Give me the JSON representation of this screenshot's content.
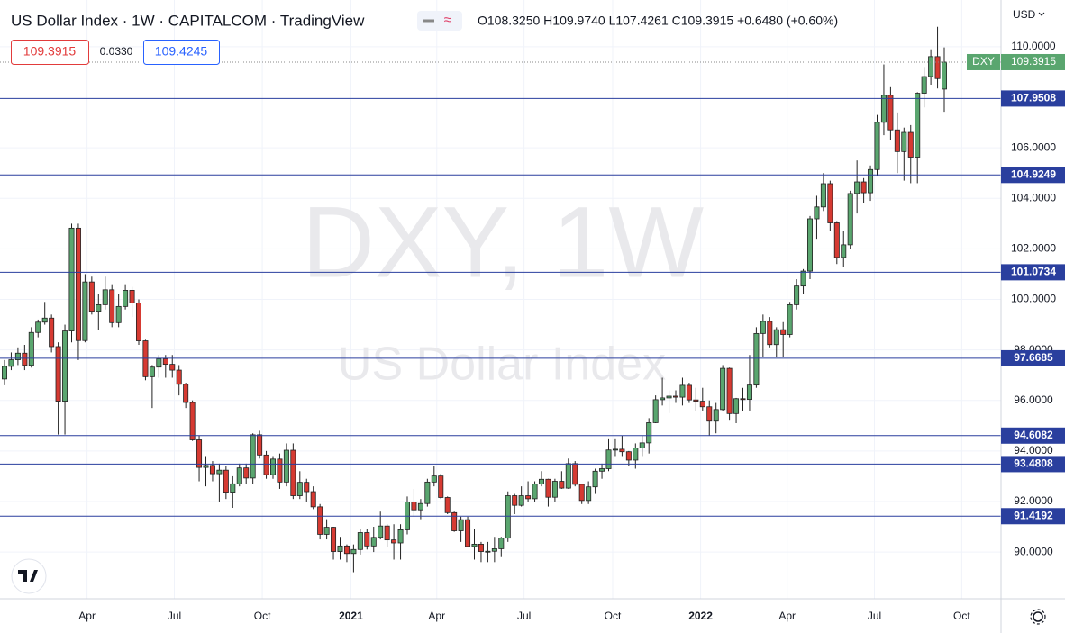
{
  "header": {
    "title": "US Dollar Index · 1W · CAPITALCOM · TradingView",
    "ohlc": "O108.3250 H109.9740 L107.4261 C109.3915 +0.6480 (+0.60%)",
    "bid": "109.3915",
    "spread": "0.0330",
    "ask": "109.4245",
    "currency": "USD"
  },
  "watermark": {
    "symbol": "DXY, 1W",
    "name": "US Dollar Index"
  },
  "chart_data": {
    "type": "candlestick",
    "up_color": "#5aa66f",
    "down_color": "#d63a32",
    "level_color": "#2a3f9e",
    "grid": true,
    "ylim": [
      88.15,
      111.85
    ],
    "yticks": [
      {
        "value": 90,
        "label": "90.0000"
      },
      {
        "value": 92,
        "label": "92.0000"
      },
      {
        "value": 94,
        "label": "94.0000"
      },
      {
        "value": 96,
        "label": "96.0000"
      },
      {
        "value": 98,
        "label": "98.0000"
      },
      {
        "value": 100,
        "label": "100.0000"
      },
      {
        "value": 102,
        "label": "102.0000"
      },
      {
        "value": 104,
        "label": "104.0000"
      },
      {
        "value": 106,
        "label": "106.0000"
      },
      {
        "value": 110,
        "label": "110.0000"
      }
    ],
    "xticks": [
      {
        "value": 12.3,
        "label": "Apr"
      },
      {
        "value": 25.3,
        "label": "Jul"
      },
      {
        "value": 38.4,
        "label": "Oct"
      },
      {
        "value": 51.6,
        "label": "2021"
      },
      {
        "value": 64.4,
        "label": "Apr"
      },
      {
        "value": 77.4,
        "label": "Jul"
      },
      {
        "value": 90.6,
        "label": "Oct"
      },
      {
        "value": 103.7,
        "label": "2022"
      },
      {
        "value": 116.6,
        "label": "Apr"
      },
      {
        "value": 129.6,
        "label": "Jul"
      },
      {
        "value": 142.6,
        "label": "Oct"
      }
    ],
    "levels": [
      107.9508,
      104.9249,
      101.0734,
      97.6685,
      94.6082,
      93.4808,
      91.4192
    ],
    "last_price": {
      "name": "DXY",
      "value": 109.3915
    },
    "candles": [
      [
        96.85,
        97.6,
        96.6,
        97.35
      ],
      [
        97.35,
        97.9,
        97.2,
        97.61
      ],
      [
        97.61,
        98.1,
        97.4,
        97.87
      ],
      [
        97.87,
        98.2,
        97.2,
        97.39
      ],
      [
        97.39,
        98.9,
        97.3,
        98.69
      ],
      [
        98.69,
        99.2,
        98.5,
        99.1
      ],
      [
        99.1,
        99.9,
        99.0,
        99.26
      ],
      [
        99.26,
        99.4,
        97.9,
        98.13
      ],
      [
        98.13,
        98.3,
        94.65,
        95.97
      ],
      [
        95.97,
        99.0,
        94.65,
        98.75
      ],
      [
        98.75,
        103.0,
        98.3,
        102.82
      ],
      [
        102.82,
        103.0,
        97.6,
        98.37
      ],
      [
        98.37,
        101.0,
        98.3,
        100.69
      ],
      [
        100.69,
        100.9,
        99.4,
        99.53
      ],
      [
        99.53,
        100.2,
        98.8,
        99.79
      ],
      [
        99.79,
        100.9,
        99.6,
        100.38
      ],
      [
        100.38,
        100.6,
        98.9,
        99.08
      ],
      [
        99.08,
        100.2,
        98.9,
        99.72
      ],
      [
        99.72,
        100.6,
        99.6,
        100.36
      ],
      [
        100.36,
        100.5,
        99.3,
        99.86
      ],
      [
        99.86,
        100.0,
        98.2,
        98.36
      ],
      [
        98.36,
        98.4,
        96.8,
        96.94
      ],
      [
        96.94,
        97.4,
        95.7,
        97.32
      ],
      [
        97.32,
        97.8,
        96.9,
        97.65
      ],
      [
        97.65,
        97.8,
        96.9,
        97.43
      ],
      [
        97.43,
        97.8,
        96.9,
        97.2
      ],
      [
        97.2,
        97.4,
        96.2,
        96.64
      ],
      [
        96.64,
        96.7,
        95.7,
        95.92
      ],
      [
        95.92,
        96.0,
        94.4,
        94.44
      ],
      [
        94.44,
        94.6,
        92.8,
        93.35
      ],
      [
        93.35,
        93.8,
        92.6,
        93.43
      ],
      [
        93.43,
        93.6,
        92.8,
        93.1
      ],
      [
        93.1,
        93.5,
        92.0,
        93.24
      ],
      [
        93.24,
        93.4,
        92.1,
        92.37
      ],
      [
        92.37,
        93.0,
        91.75,
        92.7
      ],
      [
        92.7,
        93.5,
        92.6,
        93.33
      ],
      [
        93.33,
        93.5,
        92.7,
        92.93
      ],
      [
        92.93,
        94.7,
        92.7,
        94.64
      ],
      [
        94.64,
        94.8,
        93.7,
        93.84
      ],
      [
        93.84,
        94.0,
        92.9,
        93.06
      ],
      [
        93.06,
        93.8,
        92.9,
        93.68
      ],
      [
        93.68,
        93.9,
        92.5,
        92.77
      ],
      [
        92.77,
        94.3,
        92.6,
        94.03
      ],
      [
        94.03,
        94.3,
        92.1,
        92.23
      ],
      [
        92.23,
        93.2,
        92.1,
        92.76
      ],
      [
        92.76,
        92.9,
        92.0,
        92.39
      ],
      [
        92.39,
        92.6,
        91.7,
        91.79
      ],
      [
        91.79,
        91.9,
        90.5,
        90.7
      ],
      [
        90.7,
        91.3,
        90.5,
        90.98
      ],
      [
        90.98,
        91.0,
        89.7,
        90.02
      ],
      [
        90.02,
        90.6,
        89.7,
        90.24
      ],
      [
        90.24,
        90.3,
        89.6,
        89.94
      ],
      [
        89.94,
        90.3,
        89.2,
        90.1
      ],
      [
        90.1,
        90.9,
        89.9,
        90.77
      ],
      [
        90.77,
        90.9,
        90.1,
        90.24
      ],
      [
        90.24,
        91.0,
        90.0,
        90.58
      ],
      [
        90.58,
        91.6,
        90.5,
        91.03
      ],
      [
        91.03,
        91.1,
        90.2,
        90.48
      ],
      [
        90.48,
        91.1,
        89.7,
        90.36
      ],
      [
        90.36,
        91.1,
        89.7,
        90.88
      ],
      [
        90.88,
        92.2,
        90.7,
        91.98
      ],
      [
        91.98,
        92.5,
        91.4,
        91.67
      ],
      [
        91.67,
        92.1,
        91.3,
        91.92
      ],
      [
        91.92,
        92.9,
        91.8,
        92.77
      ],
      [
        92.77,
        93.4,
        92.6,
        93.01
      ],
      [
        93.01,
        93.1,
        92.1,
        92.16
      ],
      [
        92.16,
        92.2,
        91.5,
        91.56
      ],
      [
        91.56,
        91.6,
        90.8,
        90.84
      ],
      [
        90.84,
        91.4,
        90.4,
        91.28
      ],
      [
        91.28,
        91.4,
        90.2,
        90.22
      ],
      [
        90.22,
        90.9,
        89.7,
        90.31
      ],
      [
        90.31,
        90.4,
        89.6,
        90.02
      ],
      [
        90.02,
        90.4,
        89.6,
        90.03
      ],
      [
        90.03,
        90.6,
        89.6,
        90.13
      ],
      [
        90.13,
        90.6,
        89.8,
        90.55
      ],
      [
        90.55,
        92.4,
        90.4,
        92.23
      ],
      [
        92.23,
        92.3,
        91.5,
        91.85
      ],
      [
        91.85,
        92.6,
        91.8,
        92.23
      ],
      [
        92.23,
        92.8,
        92.0,
        92.11
      ],
      [
        92.11,
        92.8,
        92.0,
        92.69
      ],
      [
        92.69,
        93.2,
        92.6,
        92.88
      ],
      [
        92.88,
        92.9,
        91.8,
        92.17
      ],
      [
        92.17,
        92.9,
        92.0,
        92.8
      ],
      [
        92.8,
        93.2,
        92.5,
        92.53
      ],
      [
        92.53,
        93.7,
        92.5,
        93.5
      ],
      [
        93.5,
        93.6,
        92.6,
        92.68
      ],
      [
        92.68,
        92.7,
        91.9,
        92.04
      ],
      [
        92.04,
        92.8,
        91.9,
        92.58
      ],
      [
        92.58,
        93.3,
        92.3,
        93.2
      ],
      [
        93.2,
        93.5,
        92.9,
        93.3
      ],
      [
        93.3,
        94.5,
        93.2,
        94.04
      ],
      [
        94.04,
        94.5,
        93.8,
        94.07
      ],
      [
        94.07,
        94.6,
        93.8,
        93.97
      ],
      [
        93.97,
        94.0,
        93.4,
        93.64
      ],
      [
        93.64,
        94.3,
        93.3,
        94.12
      ],
      [
        94.12,
        94.6,
        93.8,
        94.32
      ],
      [
        94.32,
        95.3,
        93.9,
        95.12
      ],
      [
        95.12,
        96.2,
        95.1,
        96.03
      ],
      [
        96.03,
        96.9,
        95.8,
        96.1
      ],
      [
        96.1,
        96.4,
        95.5,
        96.17
      ],
      [
        96.17,
        96.4,
        95.9,
        96.13
      ],
      [
        96.13,
        96.9,
        95.8,
        96.6
      ],
      [
        96.6,
        96.7,
        95.9,
        96.02
      ],
      [
        96.02,
        96.5,
        95.6,
        95.97
      ],
      [
        95.97,
        96.5,
        95.6,
        95.75
      ],
      [
        95.75,
        96.0,
        94.6,
        95.18
      ],
      [
        95.18,
        95.9,
        94.7,
        95.64
      ],
      [
        95.64,
        97.4,
        95.6,
        97.27
      ],
      [
        97.27,
        97.3,
        95.2,
        95.48
      ],
      [
        95.48,
        96.1,
        95.1,
        96.07
      ],
      [
        96.07,
        96.5,
        95.6,
        96.04
      ],
      [
        96.04,
        97.8,
        95.6,
        96.61
      ],
      [
        96.61,
        98.9,
        96.5,
        98.65
      ],
      [
        98.65,
        99.4,
        97.7,
        99.13
      ],
      [
        99.13,
        99.3,
        98.1,
        98.21
      ],
      [
        98.21,
        98.9,
        97.7,
        98.8
      ],
      [
        98.8,
        99.1,
        97.7,
        98.61
      ],
      [
        98.61,
        99.9,
        98.5,
        99.79
      ],
      [
        99.79,
        100.8,
        99.6,
        100.53
      ],
      [
        100.53,
        101.2,
        100.2,
        101.12
      ],
      [
        101.12,
        103.3,
        100.8,
        103.19
      ],
      [
        103.19,
        104.1,
        102.4,
        103.66
      ],
      [
        103.66,
        105.0,
        103.5,
        104.58
      ],
      [
        104.58,
        104.7,
        102.7,
        103.03
      ],
      [
        103.03,
        103.1,
        101.4,
        101.66
      ],
      [
        101.66,
        102.7,
        101.3,
        102.16
      ],
      [
        102.16,
        104.3,
        102.0,
        104.19
      ],
      [
        104.19,
        105.5,
        103.4,
        104.65
      ],
      [
        104.65,
        104.8,
        103.8,
        104.22
      ],
      [
        104.22,
        105.3,
        103.9,
        105.14
      ],
      [
        105.14,
        107.3,
        104.9,
        107.01
      ],
      [
        107.01,
        109.3,
        106.5,
        108.08
      ],
      [
        108.08,
        108.4,
        106.3,
        106.71
      ],
      [
        106.71,
        107.4,
        105.0,
        105.85
      ],
      [
        105.85,
        106.8,
        104.7,
        106.61
      ],
      [
        106.61,
        106.9,
        104.6,
        105.63
      ],
      [
        105.63,
        108.2,
        104.6,
        108.16
      ],
      [
        108.16,
        109.2,
        107.6,
        108.82
      ],
      [
        108.82,
        109.9,
        108.5,
        109.61
      ],
      [
        109.61,
        110.79,
        108.35,
        108.74
      ],
      [
        108.325,
        109.974,
        107.4261,
        109.3915
      ]
    ]
  }
}
